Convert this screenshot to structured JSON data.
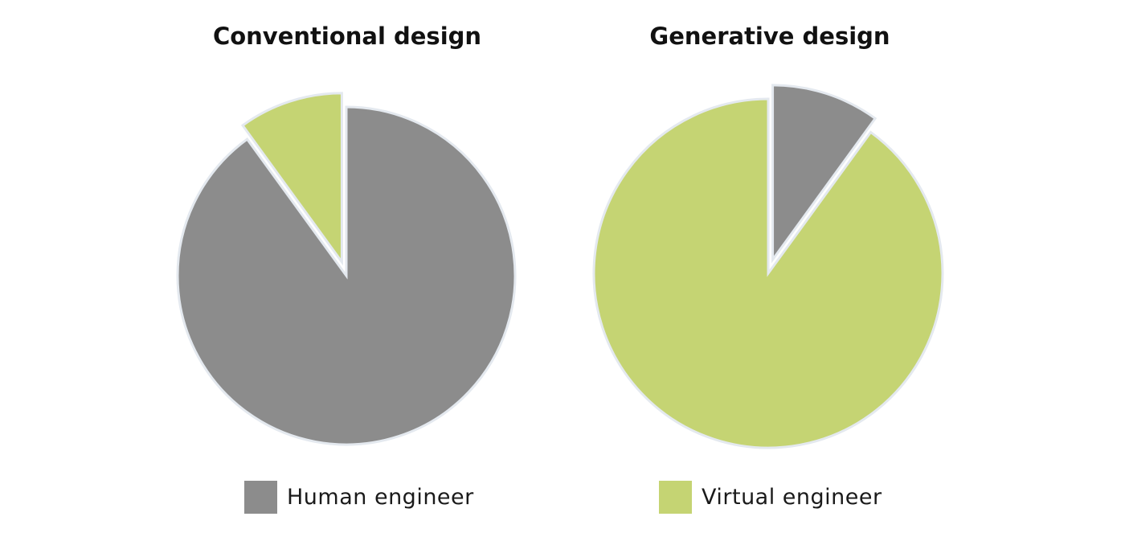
{
  "chart_data": [
    {
      "type": "pie",
      "title": "Conventional design",
      "slices": [
        {
          "label": "Human engineer",
          "value": 90,
          "color": "#8c8c8c"
        },
        {
          "label": "Virtual engineer",
          "value": 10,
          "color": "#c5d473",
          "exploded": true
        }
      ],
      "legend": {
        "label": "Human engineer",
        "color": "#8c8c8c",
        "placement": "bottom"
      }
    },
    {
      "type": "pie",
      "title": "Generative design",
      "slices": [
        {
          "label": "Human engineer",
          "value": 10,
          "color": "#8c8c8c",
          "exploded": true
        },
        {
          "label": "Virtual engineer",
          "value": 90,
          "color": "#c5d473"
        }
      ],
      "legend": {
        "label": "Virtual engineer",
        "color": "#c5d473",
        "placement": "bottom"
      }
    }
  ],
  "colors": {
    "human": "#8c8c8c",
    "virtual": "#c5d473",
    "slice_outline": "#e4e9ef"
  }
}
